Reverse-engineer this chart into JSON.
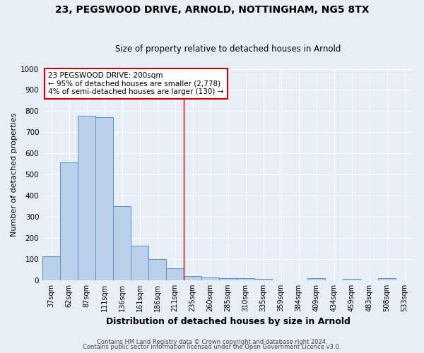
{
  "title1": "23, PEGSWOOD DRIVE, ARNOLD, NOTTINGHAM, NG5 8TX",
  "title2": "Size of property relative to detached houses in Arnold",
  "xlabel": "Distribution of detached houses by size in Arnold",
  "ylabel": "Number of detached properties",
  "footer_line1": "Contains HM Land Registry data © Crown copyright and database right 2024.",
  "footer_line2": "Contains public sector information licensed under the Open Government Licence v3.0.",
  "annotation_line1": "23 PEGSWOOD DRIVE: 200sqm",
  "annotation_line2": "← 95% of detached houses are smaller (2,778)",
  "annotation_line3": "4% of semi-detached houses are larger (130) →",
  "categories": [
    "37sqm",
    "62sqm",
    "87sqm",
    "111sqm",
    "136sqm",
    "161sqm",
    "186sqm",
    "211sqm",
    "235sqm",
    "260sqm",
    "285sqm",
    "310sqm",
    "335sqm",
    "359sqm",
    "384sqm",
    "409sqm",
    "434sqm",
    "459sqm",
    "483sqm",
    "508sqm",
    "533sqm"
  ],
  "values": [
    113,
    558,
    778,
    770,
    349,
    162,
    100,
    55,
    21,
    14,
    11,
    11,
    7,
    0,
    0,
    10,
    0,
    5,
    0,
    10,
    0
  ],
  "bar_color": "#b8d0e8",
  "bar_edge_color": "#5b8fc9",
  "vline_x": 7.5,
  "vline_color": "#cc0000",
  "bg_color": "#e8eef5",
  "plot_bg_color": "#e8eef5",
  "grid_color": "#ffffff",
  "ylim": [
    0,
    1000
  ],
  "yticks": [
    0,
    100,
    200,
    300,
    400,
    500,
    600,
    700,
    800,
    900,
    1000
  ],
  "title1_fontsize": 10,
  "title2_fontsize": 8.5,
  "xlabel_fontsize": 9,
  "ylabel_fontsize": 8,
  "tick_fontsize": 7,
  "annot_fontsize": 7.5,
  "footer_fontsize": 6
}
